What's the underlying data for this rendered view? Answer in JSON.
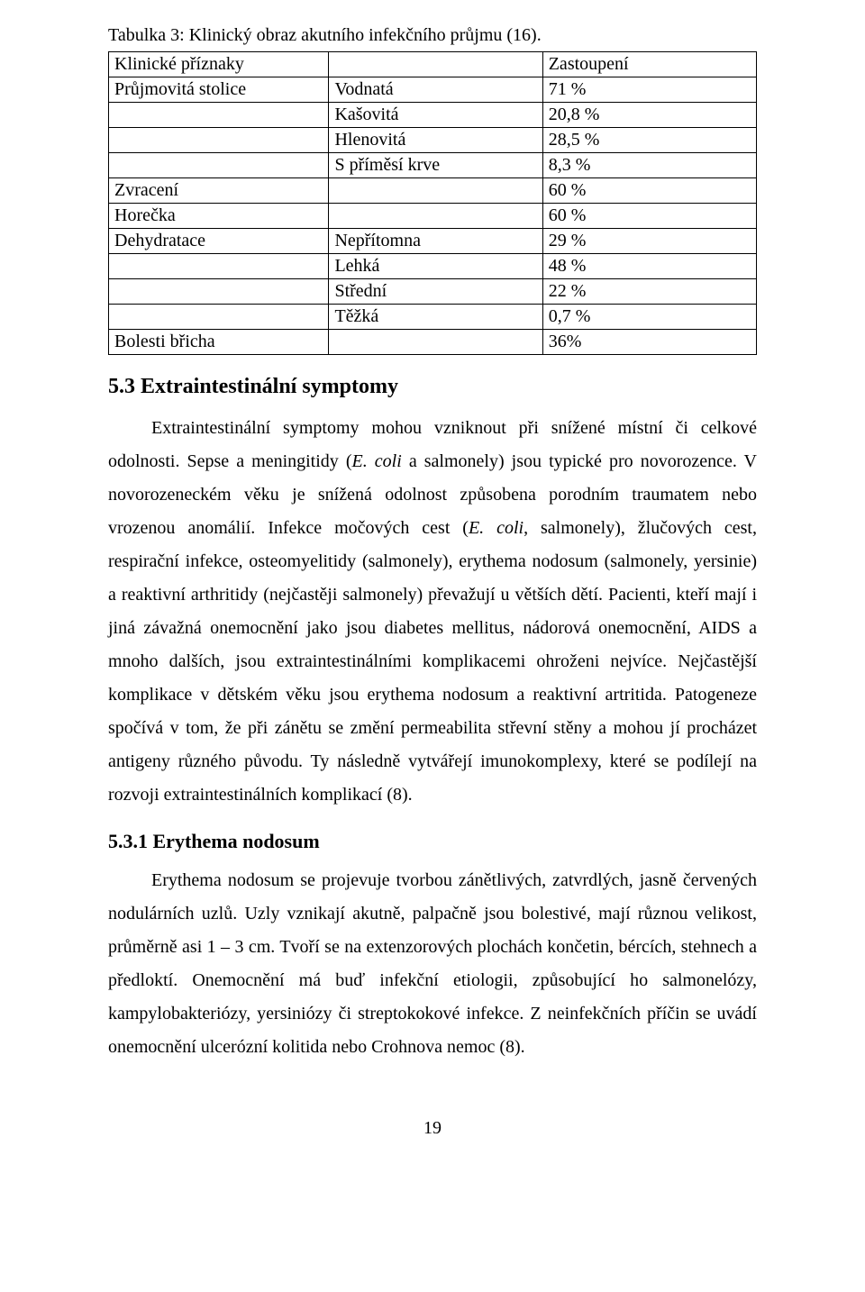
{
  "table": {
    "caption": "Tabulka 3: Klinický obraz akutního infekčního průjmu (16).",
    "header": [
      "Klinické příznaky",
      "",
      "Zastoupení"
    ],
    "rows": [
      [
        "Průjmovitá stolice",
        "Vodnatá",
        "71 %"
      ],
      [
        "",
        "Kašovitá",
        "20,8 %"
      ],
      [
        "",
        "Hlenovitá",
        "28,5 %"
      ],
      [
        "",
        "S příměsí krve",
        "8,3 %"
      ],
      [
        "Zvracení",
        "",
        "60 %"
      ],
      [
        "Horečka",
        "",
        "60 %"
      ],
      [
        "Dehydratace",
        "Nepřítomna",
        "29 %"
      ],
      [
        "",
        "Lehká",
        "48 %"
      ],
      [
        "",
        "Střední",
        "22 %"
      ],
      [
        "",
        "Těžká",
        "0,7 %"
      ],
      [
        "Bolesti břicha",
        "",
        "36%"
      ]
    ]
  },
  "section": {
    "heading": "5.3  Extraintestinální symptomy",
    "para1_parts": {
      "t0": "Extraintestinální symptomy mohou vzniknout při snížené místní či celkové odolnosti. Sepse a meningitidy (",
      "i1": "E. coli",
      "t2": " a salmonely) jsou typické pro novorozence. V novorozeneckém věku je snížená odolnost způsobena porodním traumatem nebo vrozenou anomálií. Infekce močových cest (",
      "i3": "E. coli",
      "t4": ", salmonely), žlučových cest, respirační infekce, osteomyelitidy (salmonely), erythema nodosum (salmonely, yersinie) a reaktivní arthritidy (nejčastěji salmonely) převažují u větších dětí. Pacienti, kteří mají i jiná závažná onemocnění jako jsou diabetes mellitus, nádorová onemocnění, AIDS a mnoho dalších, jsou extraintestinálními komplikacemi ohroženi nejvíce. Nejčastější komplikace v dětském věku jsou erythema nodosum a reaktivní artritida. Patogeneze spočívá v tom, že při zánětu se změní permeabilita střevní stěny a mohou jí procházet antigeny různého původu. Ty následně vytvářejí imunokomplexy, které se podílejí na rozvoji extraintestinálních komplikací (8)."
    }
  },
  "subsection": {
    "heading": "5.3.1  Erythema nodosum",
    "para": "Erythema nodosum se projevuje tvorbou zánětlivých, zatvrdlých, jasně červených nodulárních uzlů. Uzly vznikají akutně, palpačně jsou bolestivé, mají různou velikost, průměrně asi 1 – 3 cm. Tvoří se na extenzorových plochách končetin, bércích, stehnech a předloktí. Onemocnění má buď infekční etiologii, způsobující ho salmonelózy, kampylobakteriózy, yersiniózy či streptokokové infekce. Z neinfekčních příčin se uvádí onemocnění ulcerózní kolitida nebo Crohnova nemoc (8)."
  },
  "page_number": "19"
}
